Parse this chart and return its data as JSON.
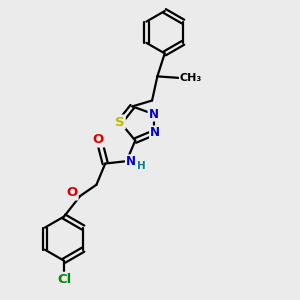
{
  "bg_color": "#ebebeb",
  "bond_color": "#000000",
  "bond_width": 1.6,
  "atom_colors": {
    "C": "#000000",
    "N": "#0000cc",
    "O": "#dd0000",
    "S": "#bbbb00",
    "Cl": "#008800",
    "H": "#008888"
  },
  "font_size": 8.5,
  "figsize": [
    3.0,
    3.0
  ],
  "dpi": 100
}
